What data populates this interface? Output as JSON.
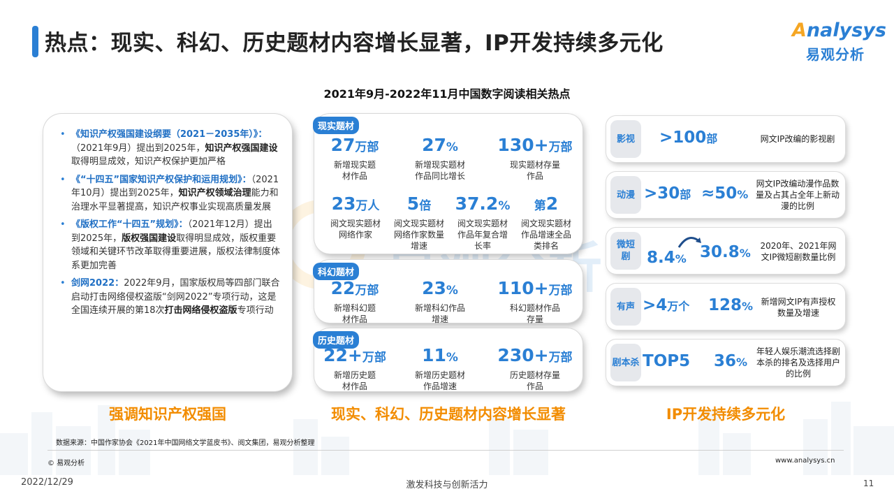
{
  "header": {
    "title": "热点：现实、科幻、历史题材内容增长显著，IP开发持续多元化",
    "logo_word_a": "A",
    "logo_word_rest": "nalysys",
    "logo_cn": "易观分析"
  },
  "subtitle": "2021年9月-2022年11月中国数字阅读相关热点",
  "watermark": "易观分析",
  "policies": [
    {
      "lead": "《知识产权强国建设纲要（2021－2035年）》：",
      "body_a": "（2021年9月）提出到2025年，",
      "bold": "知识产权强国建设",
      "body_b": "取得明显成效，知识产权保护更加严格"
    },
    {
      "lead": "《“十四五”国家知识产权保护和运用规划》：",
      "body_a": "（2021年10月）提出到2025年，",
      "bold": "知识产权领域治理",
      "body_b": "能力和治理水平显著提高，知识产权事业实现高质量发展"
    },
    {
      "lead": "《版权工作“十四五”规划》：",
      "body_a": "（2021年12月）提出到2025年，",
      "bold": "版权强国建设",
      "body_b": "取得明显成效，版权重要领域和关键环节改革取得重要进展，版权法律制度体系更加完善"
    },
    {
      "lead": "剑网2022：",
      "body_a": "2022年9月，国家版权局等四部门联合启动打击网络侵权盗版“剑网2022”专项行动，这是全国连续开展的第18次",
      "bold": "打击网络侵权盗版",
      "body_b": "专项行动"
    }
  ],
  "realistic": {
    "tag": "现实题材",
    "stats": [
      {
        "num": "27",
        "unit": "万部",
        "desc": "新增现实题材作品"
      },
      {
        "num": "27",
        "unit": "%",
        "desc": "新增现实题材作品同比增长"
      },
      {
        "num": "130+",
        "unit": "万部",
        "desc": "现实题材存量作品"
      },
      {
        "num": "23",
        "unit": "万人",
        "desc": "阅文现实题材网络作家"
      },
      {
        "num": "5",
        "unit": "倍",
        "desc": "阅文现实题材网络作家数量增速"
      },
      {
        "num": "37.2",
        "unit": "%",
        "desc": "阅文现实题材作品年复合增长率"
      },
      {
        "num": "第",
        "unit": "2",
        "desc": "阅文现实题材作品增速全品类排名"
      }
    ]
  },
  "scifi": {
    "tag": "科幻题材",
    "stats": [
      {
        "num": "22",
        "unit": "万部",
        "desc": "新增科幻题材作品"
      },
      {
        "num": "23",
        "unit": "%",
        "desc": "新增科幻作品增速"
      },
      {
        "num": "110+",
        "unit": "万部",
        "desc": "科幻题材作品存量"
      }
    ]
  },
  "history": {
    "tag": "历史题材",
    "stats": [
      {
        "num": "22+",
        "unit": "万部",
        "desc": "新增历史题材作品"
      },
      {
        "num": "11",
        "unit": "%",
        "desc": "新增历史题材作品增速"
      },
      {
        "num": "230+",
        "unit": "万部",
        "desc": "历史题材存量作品"
      }
    ]
  },
  "ip_rows": [
    {
      "cat": "影视",
      "v1": ">100",
      "u1": "部",
      "v2": "",
      "u2": "",
      "desc": "网文IP改编的影视剧"
    },
    {
      "cat": "动漫",
      "v1": ">30",
      "u1": "部",
      "v2": "≈50",
      "u2": "%",
      "desc": "网文IP改编动漫作品数量及占其占全年上新动漫的比例"
    },
    {
      "cat": "微短剧",
      "v1": "8.4",
      "u1": "%",
      "v2": "30.8",
      "u2": "%",
      "desc": "2020年、2021年网文IP微短剧数量比例"
    },
    {
      "cat": "有声",
      "v1": ">4",
      "u1": "万个",
      "v2": "128",
      "u2": "%",
      "desc": "新增网文IP有声授权数量及增速"
    },
    {
      "cat": "剧本杀",
      "v1": "TOP5",
      "u1": "",
      "v2": "36",
      "u2": "%",
      "desc": "年轻人娱乐潮流选择剧本杀的排名及选择用户的比例"
    }
  ],
  "conclusions": [
    "强调知识产权强国",
    "现实、科幻、历史题材内容增长显著",
    "IP开发持续多元化"
  ],
  "footer": {
    "source": "数据来源：中国作家协会《2021年中国网络文学蓝皮书》、阅文集团，易观分析整理",
    "copyright": "© 易观分析",
    "site": "www.analysys.cn",
    "date": "2022/12/29",
    "slogan": "激发科技与创新活力",
    "page": "11"
  },
  "colors": {
    "accent": "#2a7fd4",
    "highlight": "#f28c00",
    "tag_bg": "#2a7fd4",
    "row_cat_bg": "#e6e8ec"
  }
}
